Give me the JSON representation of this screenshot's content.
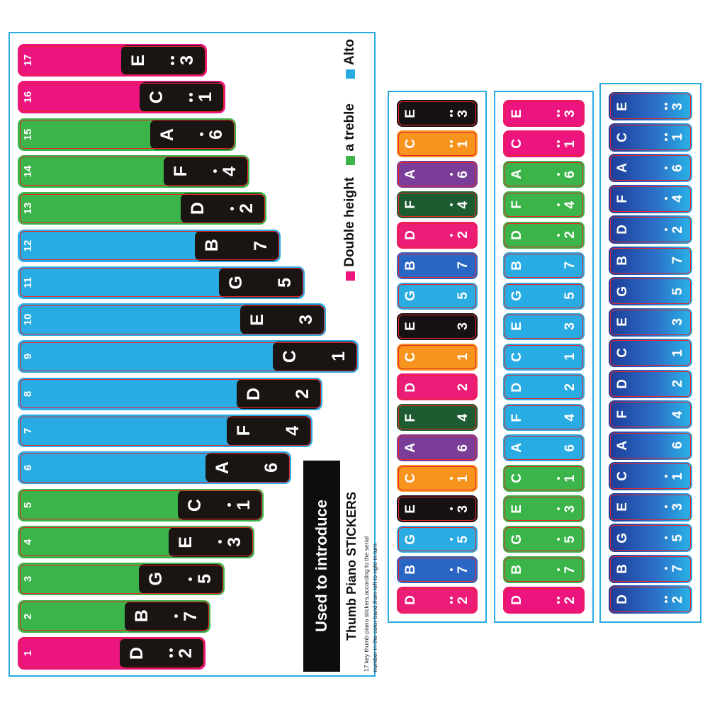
{
  "sheet": {
    "legend": {
      "items": [
        {
          "label": "Alto",
          "color": "#29abe2"
        },
        {
          "label": "a treble",
          "color": "#3bb54a"
        },
        {
          "label": "Double height",
          "color": "#ec147f"
        }
      ]
    },
    "title_block": {
      "heading": "Used to introduce",
      "subheading": "Thumb Piano STICKERS",
      "description_lines": [
        "17 key thumb piano stickers,according to the serial",
        "number in the color band,from left to right in turn"
      ]
    }
  },
  "registers": {
    "double": "#ec147f",
    "treble": "#3bb54a",
    "alto": "#29ace3"
  },
  "note_colors": {
    "E": "#161213",
    "C": "#f7941e",
    "A": "#7a3e98",
    "F": "#1c5c30",
    "D": "#ec1c79",
    "B": "#2a67c5",
    "G": "#2aace3"
  },
  "gradient": {
    "from": "#1d3c98",
    "mid": "#2c6ec6",
    "to": "#29b4e8"
  },
  "keys": [
    {
      "serial": 17,
      "note": "E",
      "num": "3",
      "dots": 2,
      "register": "double",
      "end": 292
    },
    {
      "serial": 16,
      "note": "C",
      "num": "1",
      "dots": 2,
      "register": "double",
      "end": 318
    },
    {
      "serial": 15,
      "note": "A",
      "num": "6",
      "dots": 1,
      "register": "treble",
      "end": 333
    },
    {
      "serial": 14,
      "note": "F",
      "num": "4",
      "dots": 1,
      "register": "treble",
      "end": 352
    },
    {
      "serial": 13,
      "note": "D",
      "num": "2",
      "dots": 1,
      "register": "treble",
      "end": 376
    },
    {
      "serial": 12,
      "note": "B",
      "num": "7",
      "dots": 0,
      "register": "alto",
      "end": 396
    },
    {
      "serial": 11,
      "note": "G",
      "num": "5",
      "dots": 0,
      "register": "alto",
      "end": 430
    },
    {
      "serial": 10,
      "note": "E",
      "num": "3",
      "dots": 0,
      "register": "alto",
      "end": 460
    },
    {
      "serial": 9,
      "note": "C",
      "num": "1",
      "dots": 0,
      "register": "alto",
      "end": 506
    },
    {
      "serial": 8,
      "note": "D",
      "num": "2",
      "dots": 0,
      "register": "alto",
      "end": 455
    },
    {
      "serial": 7,
      "note": "F",
      "num": "4",
      "dots": 0,
      "register": "alto",
      "end": 441
    },
    {
      "serial": 6,
      "note": "A",
      "num": "6",
      "dots": 0,
      "register": "alto",
      "end": 411
    },
    {
      "serial": 5,
      "note": "C",
      "num": "1",
      "dots": 1,
      "register": "treble",
      "end": 372
    },
    {
      "serial": 4,
      "note": "E",
      "num": "3",
      "dots": 1,
      "register": "treble",
      "end": 359
    },
    {
      "serial": 3,
      "note": "G",
      "num": "5",
      "dots": 1,
      "register": "treble",
      "end": 317
    },
    {
      "serial": 2,
      "note": "B",
      "num": "7",
      "dots": 1,
      "register": "treble",
      "end": 297
    },
    {
      "serial": 1,
      "note": "D",
      "num": "2",
      "dots": 2,
      "register": "double",
      "end": 290
    }
  ]
}
